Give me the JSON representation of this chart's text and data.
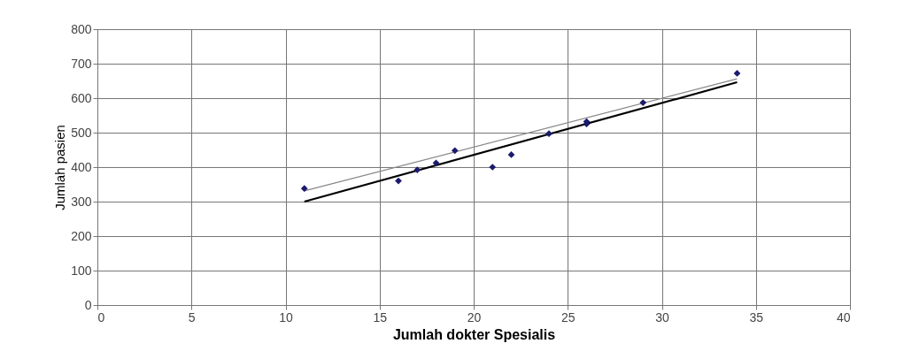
{
  "chart_data": {
    "type": "scatter",
    "xlabel": "Jumlah dokter Spesialis",
    "ylabel": "Jumlah pasien",
    "xlim": [
      0,
      40
    ],
    "xticks": [
      0,
      5,
      10,
      15,
      20,
      25,
      30,
      35,
      40
    ],
    "ylim": [
      0,
      800
    ],
    "yticks": [
      0,
      100,
      200,
      300,
      400,
      500,
      600,
      700,
      800
    ],
    "grid": true,
    "series": [
      {
        "marker": "diamond",
        "color": "#1a1a6e",
        "x": [
          11,
          16,
          17,
          18,
          19,
          21,
          22,
          24,
          26,
          26,
          29,
          34
        ],
        "values": [
          338,
          360,
          392,
          412,
          448,
          400,
          436,
          497,
          525,
          532,
          587,
          672
        ]
      },
      {
        "type": "line",
        "marker": "none",
        "color": "#888888",
        "x": [
          11,
          34
        ],
        "values": [
          331,
          656
        ]
      },
      {
        "type": "line",
        "marker": "none",
        "color": "#000000",
        "x": [
          11,
          34
        ],
        "values": [
          300,
          646
        ]
      }
    ]
  }
}
